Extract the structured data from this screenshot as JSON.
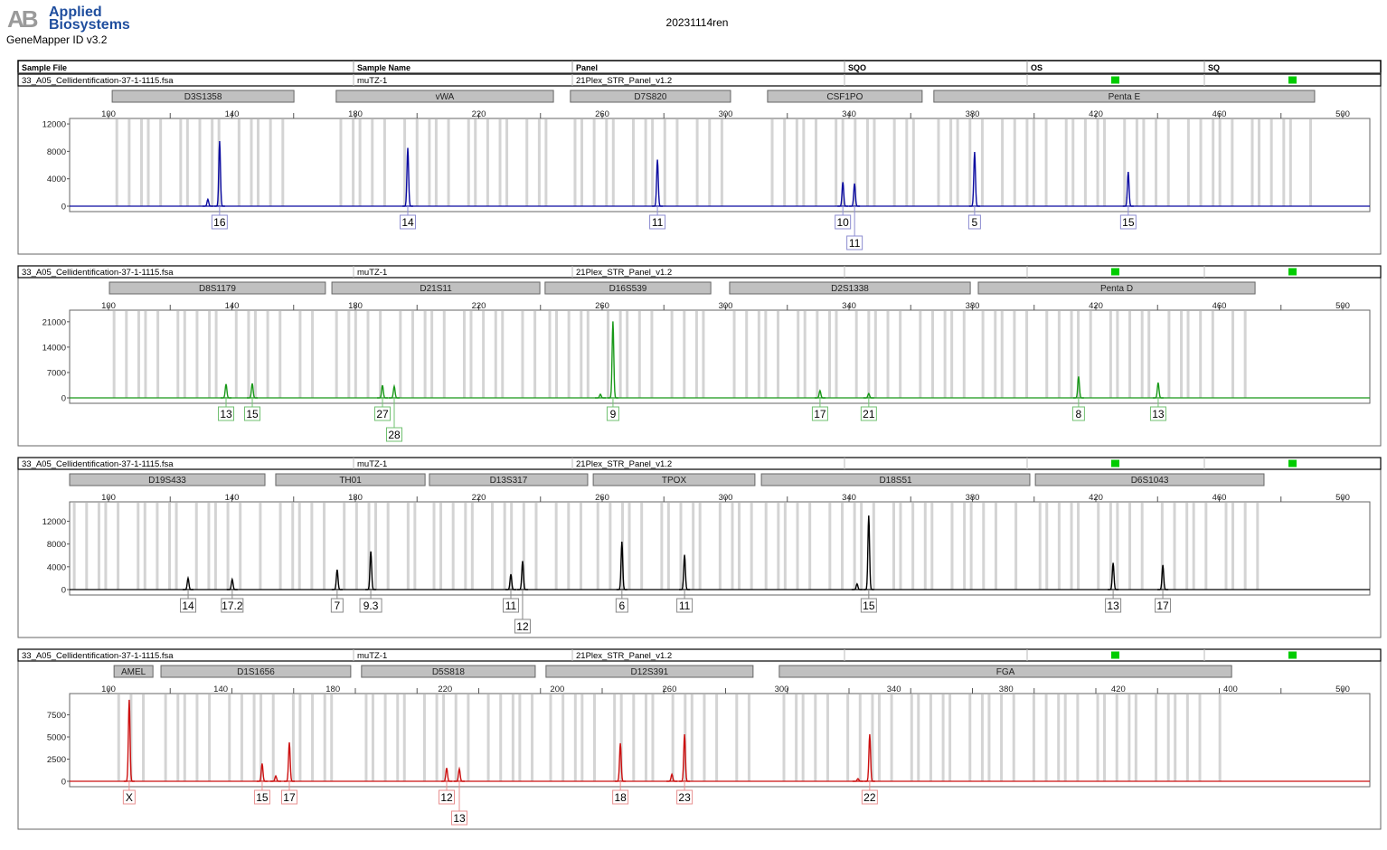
{
  "header": {
    "logo_text": "AB Applied Biosystems",
    "logo_line1": "Applied",
    "logo_line2": "Biosystems",
    "app_name": "GeneMapper ID v3.2",
    "report_title": "20231114ren"
  },
  "table_columns": [
    "Sample File",
    "Sample Name",
    "Panel",
    "SQO",
    "OS",
    "SQ"
  ],
  "colors": {
    "blue": "#0a0aa0",
    "green": "#189818",
    "black": "#000000",
    "red": "#cc1010",
    "bin": "#d4d4d4",
    "marker": "#c0c0c0",
    "quality_ok": "#00cc00"
  },
  "chart_data": [
    {
      "type": "line",
      "dye": "blue",
      "sample_file": "33_A05_Cellidentification-37-1-1115.fsa",
      "sample_name": "muTZ-1",
      "panel": "21Plex_STR_Panel_v1.2",
      "os_status": "pass",
      "sq_status": "pass",
      "x_ticks": [
        "100",
        "140",
        "180",
        "220",
        "260",
        "300",
        "340",
        "380",
        "420",
        "460",
        "500"
      ],
      "xlim": [
        100,
        500
      ],
      "y_ticks": [
        "0",
        "4000",
        "8000",
        "12000"
      ],
      "ylim": [
        0,
        12800
      ],
      "markers": [
        {
          "name": "D3S1358",
          "range": [
            101.2,
            160.1
          ]
        },
        {
          "name": "vWA",
          "range": [
            173.8,
            244.2
          ]
        },
        {
          "name": "D7S820",
          "range": [
            249.7,
            301.6
          ]
        },
        {
          "name": "CSF1PO",
          "range": [
            313.6,
            363.7
          ]
        },
        {
          "name": "Penta E",
          "range": [
            367.5,
            490.9
          ]
        }
      ],
      "peaks": [
        {
          "size": 132.2,
          "height": 1000
        },
        {
          "size": 136.0,
          "height": 9500,
          "allele": "16"
        },
        {
          "size": 197.0,
          "height": 8500,
          "allele": "14"
        },
        {
          "size": 277.9,
          "height": 6800,
          "allele": "11"
        },
        {
          "size": 338.0,
          "height": 3500,
          "allele": "10"
        },
        {
          "size": 341.8,
          "height": 3300,
          "allele": "11",
          "row": 2
        },
        {
          "size": 380.7,
          "height": 7900,
          "allele": "5"
        },
        {
          "size": 430.5,
          "height": 5000,
          "allele": "15"
        }
      ]
    },
    {
      "type": "line",
      "dye": "green",
      "sample_file": "33_A05_Cellidentification-37-1-1115.fsa",
      "sample_name": "muTZ-1",
      "panel": "21Plex_STR_Panel_v1.2",
      "os_status": "pass",
      "sq_status": "pass",
      "x_ticks": [
        "100",
        "140",
        "180",
        "220",
        "260",
        "300",
        "340",
        "380",
        "420",
        "460",
        "500"
      ],
      "xlim": [
        100,
        500
      ],
      "y_ticks": [
        "0",
        "7000",
        "14000",
        "21000"
      ],
      "ylim": [
        0,
        24200
      ],
      "markers": [
        {
          "name": "D8S1179",
          "range": [
            100.3,
            170.3
          ]
        },
        {
          "name": "D21S11",
          "range": [
            172.4,
            239.8
          ]
        },
        {
          "name": "D16S539",
          "range": [
            241.5,
            295.2
          ]
        },
        {
          "name": "D2S1338",
          "range": [
            301.3,
            379.3
          ]
        },
        {
          "name": "Penta D",
          "range": [
            381.9,
            471.6
          ]
        }
      ],
      "peaks": [
        {
          "size": 138.1,
          "height": 3800,
          "allele": "13"
        },
        {
          "size": 146.6,
          "height": 4000,
          "allele": "15"
        },
        {
          "size": 188.8,
          "height": 3500,
          "allele": "27"
        },
        {
          "size": 192.6,
          "height": 3200,
          "allele": "28",
          "row": 2
        },
        {
          "size": 259.4,
          "height": 1000
        },
        {
          "size": 263.5,
          "height": 21100,
          "allele": "9"
        },
        {
          "size": 330.6,
          "height": 2000,
          "allele": "17"
        },
        {
          "size": 346.4,
          "height": 1200,
          "allele": "21"
        },
        {
          "size": 414.4,
          "height": 5900,
          "allele": "8"
        },
        {
          "size": 440.2,
          "height": 4200,
          "allele": "13"
        }
      ]
    },
    {
      "type": "line",
      "dye": "black",
      "sample_file": "33_A05_Cellidentification-37-1-1115.fsa",
      "sample_name": "muTZ-1",
      "panel": "21Plex_STR_Panel_v1.2",
      "os_status": "pass",
      "sq_status": "pass",
      "x_ticks": [
        "100",
        "140",
        "180",
        "220",
        "260",
        "300",
        "340",
        "380",
        "420",
        "460",
        "500"
      ],
      "xlim": [
        100,
        500
      ],
      "y_ticks": [
        "0",
        "4000",
        "8000",
        "12000"
      ],
      "ylim": [
        0,
        15400
      ],
      "markers": [
        {
          "name": "D19S433",
          "range": [
            87.4,
            150.7
          ]
        },
        {
          "name": "TH01",
          "range": [
            154.2,
            202.6
          ]
        },
        {
          "name": "D13S317",
          "range": [
            204.0,
            255.3
          ]
        },
        {
          "name": "TPOX",
          "range": [
            257.1,
            309.5
          ]
        },
        {
          "name": "D18S51",
          "range": [
            311.6,
            398.6
          ]
        },
        {
          "name": "D6S1043",
          "range": [
            400.4,
            474.5
          ]
        }
      ],
      "peaks": [
        {
          "size": 125.8,
          "height": 2000,
          "allele": "14"
        },
        {
          "size": 140.1,
          "height": 1800,
          "allele": "17.2"
        },
        {
          "size": 174.1,
          "height": 3500,
          "allele": "7"
        },
        {
          "size": 185.0,
          "height": 6700,
          "allele": "9.3"
        },
        {
          "size": 230.4,
          "height": 2700,
          "allele": "11"
        },
        {
          "size": 234.2,
          "height": 5000,
          "allele": "12",
          "row": 2
        },
        {
          "size": 266.4,
          "height": 8400,
          "allele": "6"
        },
        {
          "size": 286.7,
          "height": 6100,
          "allele": "11"
        },
        {
          "size": 342.6,
          "height": 1000
        },
        {
          "size": 346.4,
          "height": 13000,
          "allele": "15"
        },
        {
          "size": 425.6,
          "height": 4700,
          "allele": "13"
        },
        {
          "size": 441.7,
          "height": 4300,
          "allele": "17"
        }
      ]
    },
    {
      "type": "line",
      "dye": "red",
      "sample_file": "33_A05_Cellidentification-37-1-1115.fsa",
      "sample_name": "muTZ-1",
      "panel": "21Plex_STR_Panel_v1.2",
      "os_status": "pass",
      "sq_status": "pass",
      "x_ticks": [
        "100",
        "140",
        "180",
        "220",
        "200",
        "260",
        "300",
        "340",
        "380",
        "420",
        "400",
        "500"
      ],
      "xlim": [
        100,
        500
      ],
      "y_ticks": [
        "0",
        "2500",
        "5000",
        "7500"
      ],
      "ylim": [
        0,
        9900
      ],
      "markers": [
        {
          "name": "AMEL",
          "range": [
            101.8,
            114.4
          ]
        },
        {
          "name": "D1S1656",
          "range": [
            117.0,
            178.5
          ]
        },
        {
          "name": "D5S818",
          "range": [
            182.0,
            238.3
          ]
        },
        {
          "name": "D12S391",
          "range": [
            241.8,
            308.9
          ]
        },
        {
          "name": "FGA",
          "range": [
            317.4,
            464.0
          ]
        }
      ],
      "peaks": [
        {
          "size": 106.7,
          "height": 9200,
          "allele": "X"
        },
        {
          "size": 149.8,
          "height": 2000,
          "allele": "15"
        },
        {
          "size": 154.2,
          "height": 600
        },
        {
          "size": 158.6,
          "height": 4400,
          "allele": "17"
        },
        {
          "size": 209.6,
          "height": 1500,
          "allele": "12"
        },
        {
          "size": 213.7,
          "height": 1400,
          "allele": "13",
          "row": 2
        },
        {
          "size": 265.9,
          "height": 4300,
          "allele": "18"
        },
        {
          "size": 282.6,
          "height": 800
        },
        {
          "size": 286.7,
          "height": 5300,
          "allele": "23"
        },
        {
          "size": 342.9,
          "height": 300
        },
        {
          "size": 346.7,
          "height": 5300,
          "allele": "22"
        }
      ]
    }
  ]
}
